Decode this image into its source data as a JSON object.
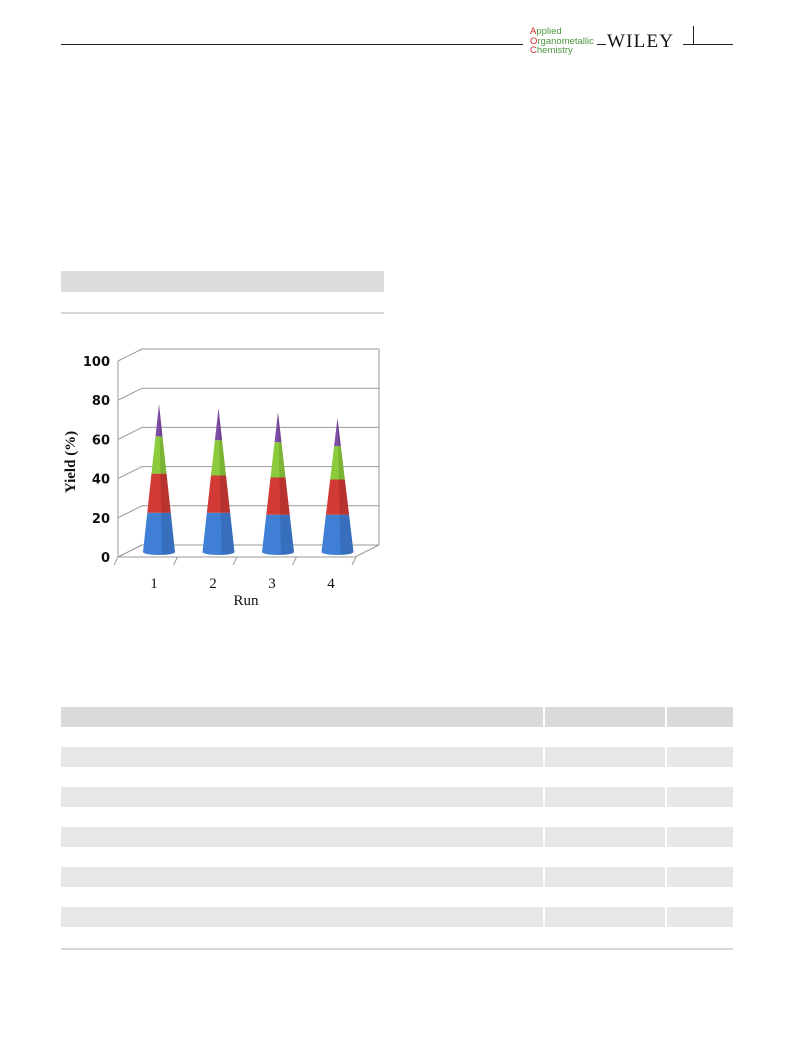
{
  "header": {
    "journal_line1": "Applied",
    "journal_line2": "Organometallic",
    "journal_line3": "Chemistry",
    "publisher": "WILEY"
  },
  "chart_data": {
    "type": "bar",
    "subtype": "3d-cone-stacked",
    "categories": [
      "1",
      "2",
      "3",
      "4"
    ],
    "series": [
      {
        "color": "#3f7fd6",
        "values": [
          20,
          20,
          19,
          19
        ]
      },
      {
        "color": "#d23b35",
        "values": [
          20,
          19,
          19,
          18
        ]
      },
      {
        "color": "#8ccc3c",
        "values": [
          19,
          18,
          18,
          17
        ]
      },
      {
        "color": "#7f4fa6",
        "values": [
          16,
          16,
          15,
          14
        ]
      }
    ],
    "ylabel": "Yield (%)",
    "xlabel": "Run",
    "yticks": [
      "0",
      "20",
      "40",
      "60",
      "80",
      "100"
    ],
    "ylim": [
      0,
      100
    ],
    "grid": true
  }
}
